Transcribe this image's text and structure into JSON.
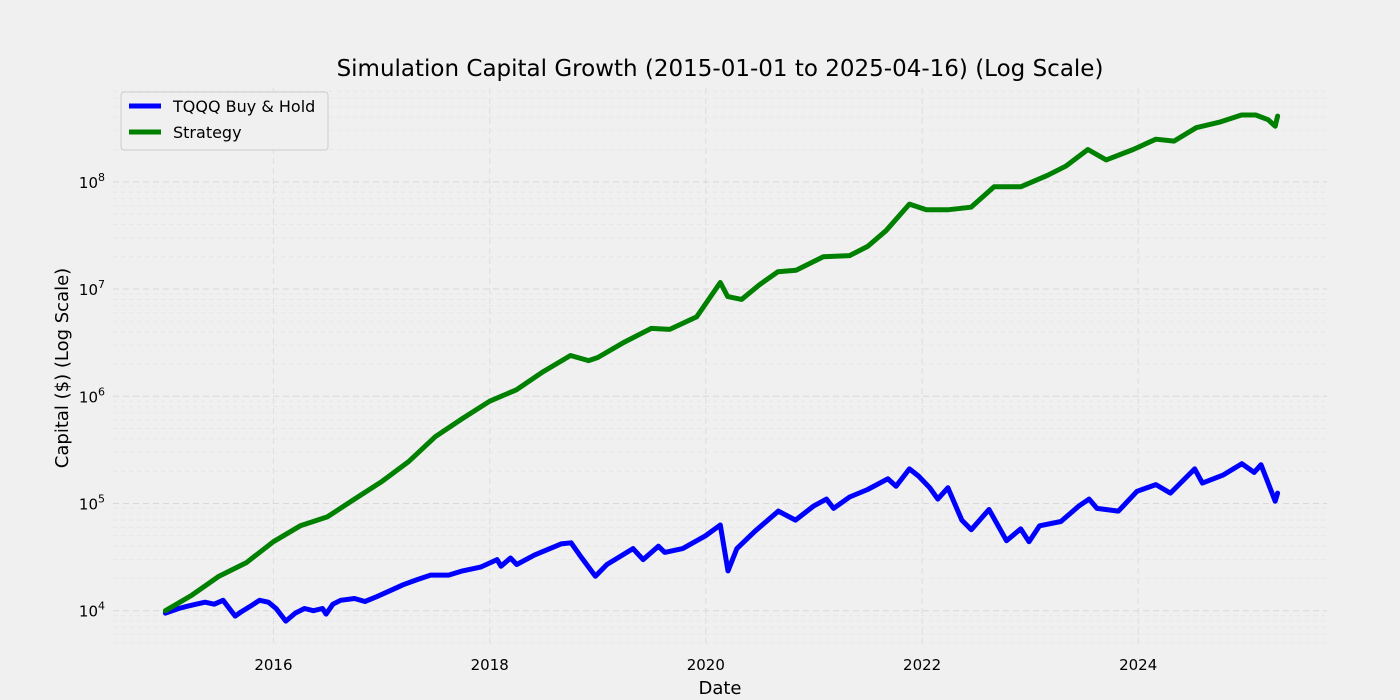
{
  "chart_data": {
    "type": "line",
    "title": "Simulation Capital Growth (2015-01-01 to 2025-04-16) (Log Scale)",
    "xlabel": "Date",
    "ylabel": "Capital ($) (Log Scale)",
    "y_scale": "log",
    "xlim": [
      "2014-07-08",
      "2025-09-30"
    ],
    "ylim": [
      5000,
      750000000
    ],
    "x_ticks": [
      {
        "date": "2016-01-01",
        "label": "2016"
      },
      {
        "date": "2018-01-01",
        "label": "2018"
      },
      {
        "date": "2020-01-01",
        "label": "2020"
      },
      {
        "date": "2022-01-01",
        "label": "2022"
      },
      {
        "date": "2024-01-01",
        "label": "2024"
      }
    ],
    "y_ticks": [
      {
        "value": 10000,
        "base": "10",
        "exp": "4"
      },
      {
        "value": 100000,
        "base": "10",
        "exp": "5"
      },
      {
        "value": 1000000,
        "base": "10",
        "exp": "6"
      },
      {
        "value": 10000000,
        "base": "10",
        "exp": "7"
      },
      {
        "value": 100000000,
        "base": "10",
        "exp": "8"
      }
    ],
    "grid": true,
    "legend_position": "top-left",
    "series": [
      {
        "name": "TQQQ Buy & Hold",
        "color": "#0000ff",
        "points": [
          [
            "2015-01-01",
            9500
          ],
          [
            "2015-02-15",
            10500
          ],
          [
            "2015-03-15",
            11000
          ],
          [
            "2015-04-15",
            11500
          ],
          [
            "2015-05-15",
            12000
          ],
          [
            "2015-06-15",
            11500
          ],
          [
            "2015-07-15",
            12500
          ],
          [
            "2015-08-25",
            8900
          ],
          [
            "2015-09-15",
            9800
          ],
          [
            "2015-10-15",
            11000
          ],
          [
            "2015-11-15",
            12500
          ],
          [
            "2015-12-15",
            12000
          ],
          [
            "2016-01-10",
            10500
          ],
          [
            "2016-02-12",
            8000
          ],
          [
            "2016-03-15",
            9500
          ],
          [
            "2016-04-15",
            10500
          ],
          [
            "2016-05-15",
            10000
          ],
          [
            "2016-06-15",
            10500
          ],
          [
            "2016-06-27",
            9300
          ],
          [
            "2016-07-20",
            11500
          ],
          [
            "2016-08-15",
            12500
          ],
          [
            "2016-10-01",
            13000
          ],
          [
            "2016-11-05",
            12200
          ],
          [
            "2016-12-15",
            13500
          ],
          [
            "2017-02-01",
            15500
          ],
          [
            "2017-03-15",
            17500
          ],
          [
            "2017-05-01",
            19500
          ],
          [
            "2017-06-15",
            21500
          ],
          [
            "2017-08-15",
            21500
          ],
          [
            "2017-10-01",
            23500
          ],
          [
            "2017-12-01",
            25500
          ],
          [
            "2018-01-26",
            30000
          ],
          [
            "2018-02-08",
            26000
          ],
          [
            "2018-03-12",
            31000
          ],
          [
            "2018-04-02",
            27000
          ],
          [
            "2018-06-01",
            33000
          ],
          [
            "2018-08-30",
            42000
          ],
          [
            "2018-10-03",
            43000
          ],
          [
            "2018-11-01",
            33000
          ],
          [
            "2018-12-24",
            21000
          ],
          [
            "2019-02-01",
            27000
          ],
          [
            "2019-04-30",
            38000
          ],
          [
            "2019-06-03",
            30000
          ],
          [
            "2019-07-25",
            40000
          ],
          [
            "2019-08-15",
            35000
          ],
          [
            "2019-10-15",
            38000
          ],
          [
            "2019-12-31",
            50000
          ],
          [
            "2020-02-19",
            63000
          ],
          [
            "2020-03-16",
            23500
          ],
          [
            "2020-04-15",
            38000
          ],
          [
            "2020-06-15",
            55000
          ],
          [
            "2020-09-02",
            85000
          ],
          [
            "2020-10-30",
            70000
          ],
          [
            "2020-12-31",
            95000
          ],
          [
            "2021-02-12",
            110000
          ],
          [
            "2021-03-08",
            90000
          ],
          [
            "2021-05-01",
            115000
          ],
          [
            "2021-07-01",
            135000
          ],
          [
            "2021-09-07",
            170000
          ],
          [
            "2021-10-05",
            145000
          ],
          [
            "2021-11-19",
            210000
          ],
          [
            "2021-12-20",
            180000
          ],
          [
            "2022-01-27",
            140000
          ],
          [
            "2022-02-23",
            110000
          ],
          [
            "2022-03-29",
            140000
          ],
          [
            "2022-05-15",
            70000
          ],
          [
            "2022-06-16",
            57000
          ],
          [
            "2022-08-15",
            88000
          ],
          [
            "2022-10-13",
            45000
          ],
          [
            "2022-11-30",
            58000
          ],
          [
            "2022-12-28",
            44000
          ],
          [
            "2023-02-02",
            62000
          ],
          [
            "2023-04-15",
            68000
          ],
          [
            "2023-06-15",
            95000
          ],
          [
            "2023-07-19",
            110000
          ],
          [
            "2023-08-15",
            90000
          ],
          [
            "2023-10-26",
            85000
          ],
          [
            "2023-12-28",
            130000
          ],
          [
            "2024-03-01",
            150000
          ],
          [
            "2024-04-19",
            125000
          ],
          [
            "2024-07-10",
            210000
          ],
          [
            "2024-08-05",
            155000
          ],
          [
            "2024-10-15",
            185000
          ],
          [
            "2024-12-16",
            235000
          ],
          [
            "2025-01-27",
            195000
          ],
          [
            "2025-02-19",
            230000
          ],
          [
            "2025-04-08",
            105000
          ],
          [
            "2025-04-16",
            125000
          ]
        ]
      },
      {
        "name": "Strategy",
        "color": "#008000",
        "points": [
          [
            "2015-01-01",
            10000
          ],
          [
            "2015-04-01",
            14000
          ],
          [
            "2015-07-01",
            21000
          ],
          [
            "2015-10-01",
            28000
          ],
          [
            "2016-01-01",
            44000
          ],
          [
            "2016-04-01",
            62000
          ],
          [
            "2016-07-01",
            75000
          ],
          [
            "2016-10-01",
            110000
          ],
          [
            "2017-01-01",
            160000
          ],
          [
            "2017-04-01",
            245000
          ],
          [
            "2017-07-01",
            420000
          ],
          [
            "2017-10-01",
            620000
          ],
          [
            "2018-01-01",
            900000
          ],
          [
            "2018-04-01",
            1150000
          ],
          [
            "2018-07-01",
            1700000
          ],
          [
            "2018-10-01",
            2400000
          ],
          [
            "2018-12-01",
            2150000
          ],
          [
            "2019-01-01",
            2300000
          ],
          [
            "2019-04-01",
            3200000
          ],
          [
            "2019-07-01",
            4300000
          ],
          [
            "2019-09-01",
            4200000
          ],
          [
            "2019-12-01",
            5500000
          ],
          [
            "2020-02-19",
            11500000
          ],
          [
            "2020-03-15",
            8500000
          ],
          [
            "2020-05-01",
            8000000
          ],
          [
            "2020-07-01",
            11000000
          ],
          [
            "2020-09-01",
            14500000
          ],
          [
            "2020-11-01",
            15000000
          ],
          [
            "2021-02-01",
            20000000
          ],
          [
            "2021-05-01",
            20500000
          ],
          [
            "2021-07-01",
            25000000
          ],
          [
            "2021-09-01",
            35000000
          ],
          [
            "2021-11-19",
            62000000
          ],
          [
            "2022-01-15",
            55000000
          ],
          [
            "2022-04-01",
            55000000
          ],
          [
            "2022-06-15",
            58000000
          ],
          [
            "2022-09-01",
            90000000
          ],
          [
            "2022-12-01",
            90000000
          ],
          [
            "2023-03-01",
            115000000
          ],
          [
            "2023-05-01",
            140000000
          ],
          [
            "2023-07-15",
            200000000
          ],
          [
            "2023-09-15",
            160000000
          ],
          [
            "2023-12-15",
            200000000
          ],
          [
            "2024-03-01",
            250000000
          ],
          [
            "2024-05-01",
            240000000
          ],
          [
            "2024-07-15",
            320000000
          ],
          [
            "2024-10-01",
            360000000
          ],
          [
            "2024-12-15",
            420000000
          ],
          [
            "2025-02-01",
            420000000
          ],
          [
            "2025-03-15",
            380000000
          ],
          [
            "2025-04-08",
            330000000
          ],
          [
            "2025-04-16",
            410000000
          ]
        ]
      }
    ]
  }
}
